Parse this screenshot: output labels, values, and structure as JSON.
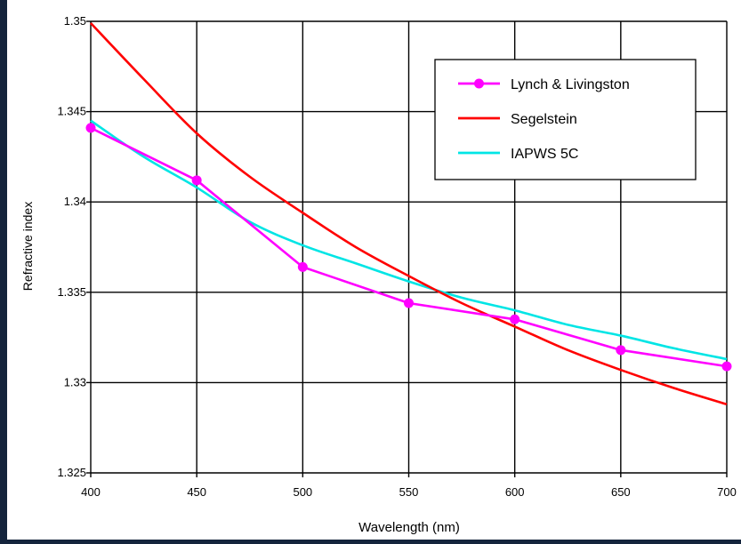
{
  "colors": {
    "frame": "#14243c",
    "background": "#ffffff",
    "grid": "#000000"
  },
  "chart_data": {
    "type": "line",
    "title": "",
    "xlabel": "Wavelength (nm)",
    "ylabel": "Refractive index",
    "xlim": [
      400,
      700
    ],
    "ylim": [
      1.325,
      1.35
    ],
    "x_ticks": [
      400,
      450,
      500,
      550,
      600,
      650,
      700
    ],
    "x_tick_labels": [
      "400",
      "450",
      "500",
      "550",
      "600",
      "650",
      "700"
    ],
    "y_ticks": [
      1.325,
      1.33,
      1.335,
      1.34,
      1.345,
      1.35
    ],
    "y_tick_labels": [
      "1.325",
      "1.33",
      "1.335",
      "1.34",
      "1.345",
      "1.35"
    ],
    "grid": true,
    "legend_position": "top-right",
    "series": [
      {
        "name": "Lynch & Livingston",
        "color": "#ff00ff",
        "markers": true,
        "x": [
          400,
          450,
          500,
          550,
          600,
          650,
          700
        ],
        "y": [
          1.3441,
          1.3412,
          1.3364,
          1.3344,
          1.3335,
          1.3318,
          1.3309
        ]
      },
      {
        "name": "Segelstein",
        "color": "#ff0000",
        "markers": false,
        "x": [
          400,
          425,
          450,
          475,
          500,
          525,
          550,
          575,
          600,
          625,
          650,
          675,
          700
        ],
        "y": [
          1.3499,
          1.3468,
          1.3438,
          1.3414,
          1.3394,
          1.3375,
          1.3359,
          1.3344,
          1.3331,
          1.3318,
          1.3307,
          1.3297,
          1.3288
        ]
      },
      {
        "name": "IAPWS 5C",
        "color": "#00e5e5",
        "markers": false,
        "x": [
          400,
          425,
          450,
          475,
          500,
          525,
          550,
          575,
          600,
          625,
          650,
          675,
          700
        ],
        "y": [
          1.3445,
          1.3425,
          1.3408,
          1.3389,
          1.3376,
          1.3366,
          1.3356,
          1.3347,
          1.334,
          1.3332,
          1.3326,
          1.3319,
          1.3313
        ]
      }
    ]
  }
}
